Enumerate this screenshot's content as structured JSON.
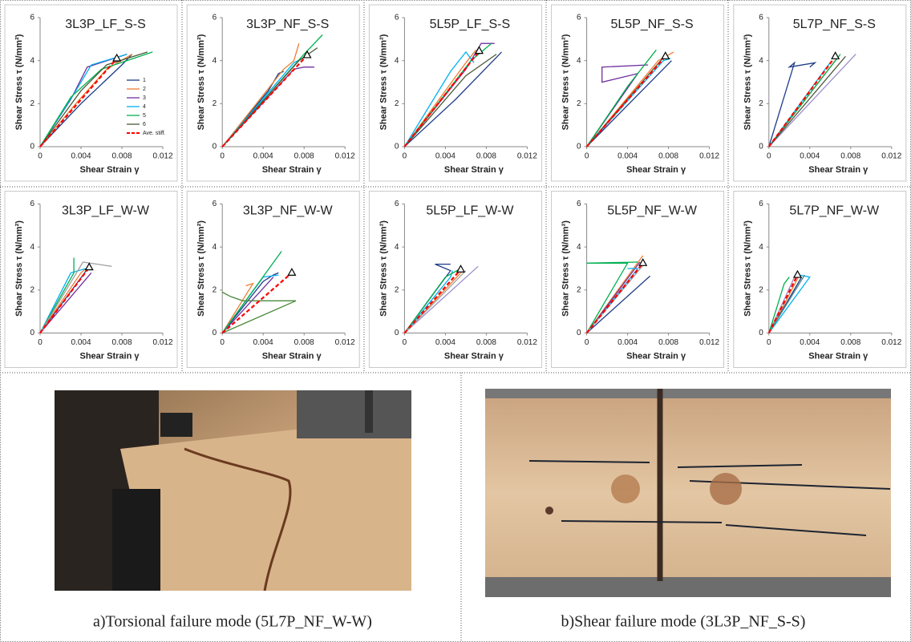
{
  "chart_data": [
    {
      "type": "line",
      "title": "3L3P_LF_S-S",
      "xlabel": "Shear Strain γ",
      "ylabel": "Shear Stress τ (N/mm²)",
      "xlim": [
        0,
        0.012
      ],
      "ylim": [
        0,
        6
      ],
      "xticks": [
        0,
        0.004,
        0.008,
        0.012
      ],
      "yticks": [
        0,
        2,
        4,
        6
      ],
      "legend": "lower right",
      "series": [
        {
          "name": "1",
          "color": "#1f3c88",
          "x": [
            0,
            0.004,
            0.008,
            0.009
          ],
          "values": [
            0,
            2,
            3.8,
            4.3
          ]
        },
        {
          "name": "2",
          "color": "#ed7d31",
          "x": [
            0,
            0.0035,
            0.0065,
            0.009
          ],
          "values": [
            0,
            2.0,
            3.6,
            4.3
          ]
        },
        {
          "name": "3",
          "color": "#7030a0",
          "x": [
            0,
            0.003,
            0.0045,
            0.0046,
            0.0085
          ],
          "values": [
            0,
            2.2,
            3.6,
            3.7,
            4.3
          ]
        },
        {
          "name": "4",
          "color": "#00b0f0",
          "x": [
            0,
            0.0035,
            0.005,
            0.0085
          ],
          "values": [
            0,
            2.6,
            3.8,
            4.3
          ]
        },
        {
          "name": "5",
          "color": "#00b050",
          "x": [
            0,
            0.003,
            0.006,
            0.011
          ],
          "values": [
            0,
            2.3,
            3.6,
            4.4
          ]
        },
        {
          "name": "6",
          "color": "#4a5a3a",
          "x": [
            0,
            0.004,
            0.0065,
            0.0105
          ],
          "values": [
            0,
            2.6,
            3.8,
            4.4
          ]
        },
        {
          "name": "Ave. stiff.",
          "color": "#ff0000",
          "dash": true,
          "marker": "triangle",
          "x": [
            0,
            0.0075
          ],
          "values": [
            0,
            4.1
          ]
        }
      ]
    },
    {
      "type": "line",
      "title": "3L3P_NF_S-S",
      "xlabel": "Shear Strain γ",
      "ylabel": "Shear Stress τ (N/mm²)",
      "xlim": [
        0,
        0.012
      ],
      "ylim": [
        0,
        6
      ],
      "xticks": [
        0,
        0.004,
        0.008,
        0.012
      ],
      "yticks": [
        0,
        2,
        4,
        6
      ],
      "series": [
        {
          "color": "#1f3c88",
          "x": [
            0,
            0.0045,
            0.0055,
            0.006
          ],
          "values": [
            0,
            2.6,
            3.4,
            3.5
          ]
        },
        {
          "color": "#ed7d31",
          "x": [
            0,
            0.006,
            0.007,
            0.0075
          ],
          "values": [
            0,
            3.6,
            4.0,
            4.8
          ]
        },
        {
          "color": "#7030a0",
          "x": [
            0,
            0.007,
            0.008,
            0.009
          ],
          "values": [
            0,
            3.6,
            3.7,
            3.7
          ]
        },
        {
          "color": "#00b0f0",
          "x": [
            0,
            0.007,
            0.0082
          ],
          "values": [
            0,
            3.9,
            4.2
          ]
        },
        {
          "color": "#00b050",
          "x": [
            0,
            0.008,
            0.0098
          ],
          "values": [
            0,
            4.3,
            5.2
          ]
        },
        {
          "color": "#4a5a3a",
          "x": [
            0,
            0.0075,
            0.0093
          ],
          "values": [
            0,
            4.0,
            4.6
          ]
        },
        {
          "color": "#ff0000",
          "dash": true,
          "marker": "triangle",
          "x": [
            0,
            0.0083
          ],
          "values": [
            0,
            4.25
          ]
        }
      ]
    },
    {
      "type": "line",
      "title": "5L5P_LF_S-S",
      "xlabel": "Shear Strain γ",
      "ylabel": "Shear Stress τ (N/mm²)",
      "xlim": [
        0,
        0.012
      ],
      "ylim": [
        0,
        6
      ],
      "xticks": [
        0,
        0.004,
        0.008,
        0.012
      ],
      "yticks": [
        0,
        2,
        4,
        6
      ],
      "series": [
        {
          "color": "#1f3c88",
          "x": [
            0,
            0.005,
            0.0095
          ],
          "values": [
            0,
            2.2,
            4.4
          ]
        },
        {
          "color": "#ed7d31",
          "x": [
            0,
            0.006,
            0.007
          ],
          "values": [
            0,
            3.9,
            4.5
          ]
        },
        {
          "color": "#7030a0",
          "x": [
            0,
            0.006,
            0.0075,
            0.0088
          ],
          "values": [
            0,
            3.6,
            4.8,
            4.8
          ]
        },
        {
          "color": "#00b0f0",
          "x": [
            0,
            0.0045,
            0.006,
            0.0068
          ],
          "values": [
            0,
            3.5,
            4.4,
            3.9
          ]
        },
        {
          "color": "#00b050",
          "x": [
            0,
            0.0065,
            0.0085
          ],
          "values": [
            0,
            4.0,
            4.8
          ]
        },
        {
          "color": "#4a5a3a",
          "x": [
            0,
            0.006,
            0.009
          ],
          "values": [
            0,
            3.3,
            4.3
          ]
        },
        {
          "color": "#ff0000",
          "dash": true,
          "marker": "triangle",
          "x": [
            0,
            0.0073
          ],
          "values": [
            0,
            4.45
          ]
        }
      ]
    },
    {
      "type": "line",
      "title": "5L5P_NF_S-S",
      "xlabel": "Shear Strain γ",
      "ylabel": "Shear Stress τ (N/mm²)",
      "xlim": [
        0,
        0.012
      ],
      "ylim": [
        0,
        6
      ],
      "xticks": [
        0,
        0.004,
        0.008,
        0.012
      ],
      "yticks": [
        0,
        2,
        4,
        6
      ],
      "series": [
        {
          "color": "#1f3c88",
          "x": [
            0,
            0.0083
          ],
          "values": [
            0,
            4.0
          ]
        },
        {
          "color": "#ed7d31",
          "x": [
            0,
            0.007,
            0.0085
          ],
          "values": [
            0,
            4.0,
            4.4
          ]
        },
        {
          "color": "#7030a0",
          "x": [
            0,
            0.005,
            0.0015,
            0.0015,
            0.006
          ],
          "values": [
            0,
            3.4,
            3.0,
            3.7,
            3.8
          ]
        },
        {
          "color": "#00b0f0",
          "x": [
            0,
            0.0075,
            0.0082
          ],
          "values": [
            0,
            4.0,
            4.1
          ]
        },
        {
          "color": "#00b050",
          "x": [
            0,
            0.004,
            0.0068
          ],
          "values": [
            0,
            2.8,
            4.5
          ]
        },
        {
          "color": "#4a5a3a",
          "x": [
            0,
            0.0065,
            0.0078
          ],
          "values": [
            0,
            3.6,
            4.3
          ]
        },
        {
          "color": "#ff0000",
          "dash": true,
          "marker": "triangle",
          "x": [
            0,
            0.0077
          ],
          "values": [
            0,
            4.2
          ]
        }
      ]
    },
    {
      "type": "line",
      "title": "5L7P_NF_S-S",
      "xlabel": "Shear Strain γ",
      "ylabel": "Shear Stress τ (N/mm²)",
      "xlim": [
        0,
        0.012
      ],
      "ylim": [
        0,
        6
      ],
      "xticks": [
        0,
        0.004,
        0.008,
        0.012
      ],
      "yticks": [
        0,
        2,
        4,
        6
      ],
      "series": [
        {
          "color": "#1f3c88",
          "x": [
            0,
            0.0025,
            0.002,
            0.0045,
            0.004
          ],
          "values": [
            0,
            3.9,
            3.7,
            3.9,
            3.7
          ]
        },
        {
          "color": "#ed7d31",
          "x": [
            0,
            0.0068
          ],
          "values": [
            0,
            4.2
          ]
        },
        {
          "color": "#9b8fc9",
          "x": [
            0,
            0.0085
          ],
          "values": [
            0,
            4.3
          ]
        },
        {
          "color": "#00b0f0",
          "x": [
            0,
            0.0055,
            0.006
          ],
          "values": [
            0,
            3.6,
            3.9
          ]
        },
        {
          "color": "#00b050",
          "x": [
            0,
            0.007
          ],
          "values": [
            0,
            4.3
          ]
        },
        {
          "color": "#4a5a3a",
          "x": [
            0,
            0.0075
          ],
          "values": [
            0,
            4.2
          ]
        },
        {
          "color": "#ff0000",
          "dash": true,
          "marker": "triangle",
          "x": [
            0,
            0.0065
          ],
          "values": [
            0,
            4.2
          ]
        }
      ]
    },
    {
      "type": "line",
      "title": "3L3P_LF_W-W",
      "xlabel": "Shear Strain γ",
      "ylabel": "Shear Stress τ (N/mm²)",
      "xlim": [
        0,
        0.012
      ],
      "ylim": [
        0,
        6
      ],
      "xticks": [
        0,
        0.004,
        0.008,
        0.012
      ],
      "yticks": [
        0,
        2,
        4,
        6
      ],
      "series": [
        {
          "color": "#1f3c88",
          "x": [
            0,
            0.0045
          ],
          "values": [
            0,
            2.9
          ]
        },
        {
          "color": "#ed7d31",
          "x": [
            0,
            0.004,
            0.0045
          ],
          "values": [
            0,
            2.8,
            3.0
          ]
        },
        {
          "color": "#7030a0",
          "x": [
            0,
            0.005
          ],
          "values": [
            0,
            2.8
          ]
        },
        {
          "color": "#00b0f0",
          "x": [
            0,
            0.003,
            0.0045
          ],
          "values": [
            0,
            2.8,
            3.0
          ]
        },
        {
          "color": "#00b050",
          "x": [
            0,
            0.0033,
            0.0033
          ],
          "values": [
            0,
            2.8,
            3.5
          ]
        },
        {
          "color": "#a0a0a0",
          "x": [
            0,
            0.0042,
            0.007
          ],
          "values": [
            0,
            3.3,
            3.1
          ]
        },
        {
          "color": "#ff0000",
          "dash": true,
          "marker": "triangle",
          "x": [
            0,
            0.0048
          ],
          "values": [
            0,
            3.05
          ]
        }
      ]
    },
    {
      "type": "line",
      "title": "3L3P_NF_W-W",
      "xlabel": "Shear Strain γ",
      "ylabel": "Shear Stress τ (N/mm²)",
      "xlim": [
        0,
        0.012
      ],
      "ylim": [
        0,
        6
      ],
      "xticks": [
        0,
        0.004,
        0.008,
        0.012
      ],
      "yticks": [
        0,
        2,
        4,
        6
      ],
      "series": [
        {
          "color": "#1f3c88",
          "x": [
            0,
            0.004,
            0.005,
            0.0055
          ],
          "values": [
            0,
            2.4,
            2.7,
            2.8
          ]
        },
        {
          "color": "#ed7d31",
          "x": [
            0,
            0.003,
            0.0023
          ],
          "values": [
            0,
            2.3,
            2.2
          ]
        },
        {
          "color": "#7030a0",
          "x": [
            0,
            0.005
          ],
          "values": [
            0,
            2.6
          ]
        },
        {
          "color": "#00b0f0",
          "x": [
            0,
            0.004,
            0.0055
          ],
          "values": [
            0,
            2.6,
            2.7
          ]
        },
        {
          "color": "#00b050",
          "x": [
            0,
            0.0058
          ],
          "values": [
            0,
            3.8
          ]
        },
        {
          "color": "#4a8a3a",
          "x": [
            0,
            0.0072,
            0.002,
            0.0008,
            0
          ],
          "values": [
            0,
            1.5,
            1.5,
            1.7,
            1.9
          ]
        },
        {
          "color": "#ff0000",
          "dash": true,
          "marker": "triangle",
          "x": [
            0,
            0.0068
          ],
          "values": [
            0,
            2.8
          ]
        }
      ]
    },
    {
      "type": "line",
      "title": "5L5P_LF_W-W",
      "xlabel": "Shear Strain γ",
      "ylabel": "Shear Stress τ (N/mm²)",
      "xlim": [
        0,
        0.012
      ],
      "ylim": [
        0,
        6
      ],
      "xticks": [
        0,
        0.004,
        0.008,
        0.012
      ],
      "yticks": [
        0,
        2,
        4,
        6
      ],
      "series": [
        {
          "color": "#1f3c88",
          "x": [
            0,
            0.0045,
            0.003,
            0.0045
          ],
          "values": [
            0,
            2.9,
            3.2,
            3.2
          ]
        },
        {
          "color": "#ed7d31",
          "x": [
            0,
            0.0055
          ],
          "values": [
            0,
            2.8
          ]
        },
        {
          "color": "#9b8fc9",
          "x": [
            0,
            0.0072
          ],
          "values": [
            0,
            3.1
          ]
        },
        {
          "color": "#00b0f0",
          "x": [
            0,
            0.0045,
            0.0047
          ],
          "values": [
            0,
            2.6,
            2.9
          ]
        },
        {
          "color": "#00b050",
          "x": [
            0,
            0.004,
            0.0055
          ],
          "values": [
            0,
            2.6,
            3.0
          ]
        },
        {
          "color": "#a0a0a0",
          "x": [
            0,
            0.006
          ],
          "values": [
            0,
            2.9
          ]
        },
        {
          "color": "#ff0000",
          "dash": true,
          "marker": "triangle",
          "x": [
            0,
            0.0055
          ],
          "values": [
            0,
            2.95
          ]
        }
      ]
    },
    {
      "type": "line",
      "title": "5L5P_NF_W-W",
      "xlabel": "Shear Strain γ",
      "ylabel": "Shear Stress τ (N/mm²)",
      "xlim": [
        0,
        0.012
      ],
      "ylim": [
        0,
        6
      ],
      "xticks": [
        0,
        0.004,
        0.008,
        0.012
      ],
      "yticks": [
        0,
        2,
        4,
        6
      ],
      "series": [
        {
          "color": "#1f3c88",
          "x": [
            0,
            0.0062
          ],
          "values": [
            0,
            2.65
          ]
        },
        {
          "color": "#ed7d31",
          "x": [
            0,
            0.0055
          ],
          "values": [
            0,
            3.6
          ]
        },
        {
          "color": "#7030a0",
          "x": [
            0,
            0.0052
          ],
          "values": [
            0,
            3.3
          ]
        },
        {
          "color": "#00b0f0",
          "x": [
            0,
            0.005,
            0.004
          ],
          "values": [
            0,
            3.0,
            3.0
          ]
        },
        {
          "color": "#00b050",
          "x": [
            0,
            0.004,
            0,
            0.005
          ],
          "values": [
            0,
            3.25,
            3.25,
            3.3
          ]
        },
        {
          "color": "#a0a0a0",
          "x": [
            0,
            0.0056
          ],
          "values": [
            0,
            3.2
          ]
        },
        {
          "color": "#ff0000",
          "dash": true,
          "marker": "triangle",
          "x": [
            0,
            0.0055
          ],
          "values": [
            0,
            3.25
          ]
        }
      ]
    },
    {
      "type": "line",
      "title": "5L7P_NF_W-W",
      "xlabel": "Shear Strain γ",
      "ylabel": "Shear Stress τ (N/mm²)",
      "xlim": [
        0,
        0.012
      ],
      "ylim": [
        0,
        6
      ],
      "xticks": [
        0,
        0.004,
        0.008,
        0.012
      ],
      "yticks": [
        0,
        2,
        4,
        6
      ],
      "series": [
        {
          "color": "#1f3c88",
          "x": [
            0,
            0.0032
          ],
          "values": [
            0,
            2.6
          ]
        },
        {
          "color": "#ed7d31",
          "x": [
            0,
            0.003
          ],
          "values": [
            0,
            2.7
          ]
        },
        {
          "color": "#9b8fc9",
          "x": [
            0,
            0.0025
          ],
          "values": [
            0,
            2.6
          ]
        },
        {
          "color": "#00b0f0",
          "x": [
            0,
            0.004,
            0.003
          ],
          "values": [
            0,
            2.6,
            2.7
          ]
        },
        {
          "color": "#00b050",
          "x": [
            0,
            0.0015,
            0.002
          ],
          "values": [
            0,
            2.3,
            2.6
          ]
        },
        {
          "color": "#4a8a8a",
          "x": [
            0,
            0.0035
          ],
          "values": [
            0,
            2.7
          ]
        },
        {
          "color": "#ff0000",
          "dash": true,
          "marker": "triangle",
          "x": [
            0,
            0.0028
          ],
          "values": [
            0,
            2.7
          ]
        }
      ]
    }
  ],
  "photos": [
    {
      "caption": "a)Torsional failure mode (5L7P_NF_W-W)"
    },
    {
      "caption": "b)Shear failure mode (3L3P_NF_S-S)"
    }
  ]
}
